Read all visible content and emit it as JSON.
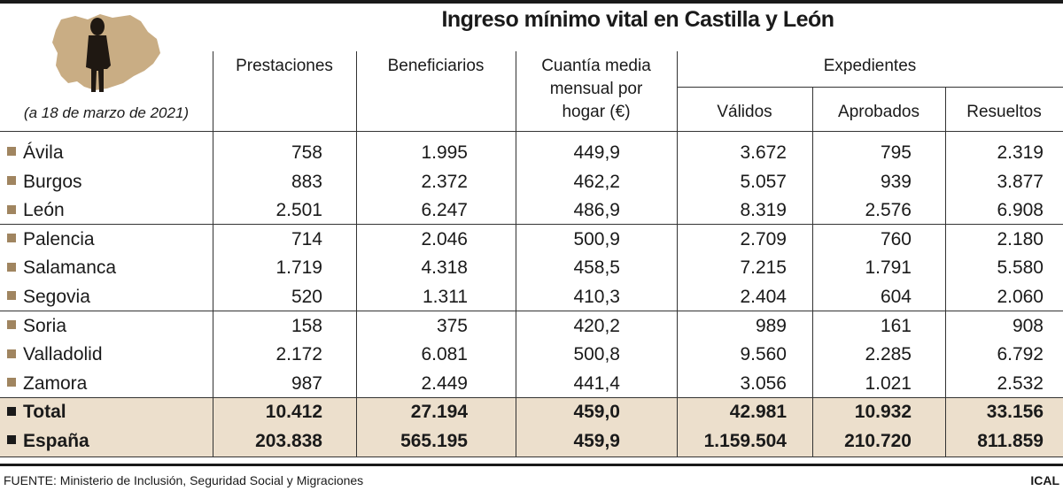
{
  "title": "Ingreso mínimo vital en Castilla y León",
  "date_note": "(a 18 de marzo de 2021)",
  "colors": {
    "beige_total_bg": "#ecdfcc",
    "province_bullet": "#a08560",
    "map_fill": "#c9ad84",
    "silhouette": "#1f1812"
  },
  "headers": {
    "prestaciones": "Prestaciones",
    "beneficiarios": "Beneficiarios",
    "cuantia": [
      "Cuantía media",
      "mensual por",
      "hogar (€)"
    ],
    "expedientes": "Expedientes",
    "validos": "Válidos",
    "aprobados": "Aprobados",
    "resueltos": "Resueltos"
  },
  "chart_data": {
    "type": "table",
    "title": "Ingreso mínimo vital en Castilla y León",
    "columns": [
      "Prestaciones",
      "Beneficiarios",
      "Cuantía media mensual por hogar (€)",
      "Expedientes Válidos",
      "Expedientes Aprobados",
      "Expedientes Resueltos"
    ],
    "rows": [
      {
        "name": "Ávila",
        "values": [
          "758",
          "1.995",
          "449,9",
          "3.672",
          "795",
          "2.319"
        ]
      },
      {
        "name": "Burgos",
        "values": [
          "883",
          "2.372",
          "462,2",
          "5.057",
          "939",
          "3.877"
        ]
      },
      {
        "name": "León",
        "values": [
          "2.501",
          "6.247",
          "486,9",
          "8.319",
          "2.576",
          "6.908"
        ]
      },
      {
        "name": "Palencia",
        "values": [
          "714",
          "2.046",
          "500,9",
          "2.709",
          "760",
          "2.180"
        ]
      },
      {
        "name": "Salamanca",
        "values": [
          "1.719",
          "4.318",
          "458,5",
          "7.215",
          "1.791",
          "5.580"
        ]
      },
      {
        "name": "Segovia",
        "values": [
          "520",
          "1.311",
          "410,3",
          "2.404",
          "604",
          "2.060"
        ]
      },
      {
        "name": "Soria",
        "values": [
          "158",
          "375",
          "420,2",
          "989",
          "161",
          "908"
        ]
      },
      {
        "name": "Valladolid",
        "values": [
          "2.172",
          "6.081",
          "500,8",
          "9.560",
          "2.285",
          "6.792"
        ]
      },
      {
        "name": "Zamora",
        "values": [
          "987",
          "2.449",
          "441,4",
          "3.056",
          "1.021",
          "2.532"
        ]
      },
      {
        "name": "Total",
        "values": [
          "10.412",
          "27.194",
          "459,0",
          "42.981",
          "10.932",
          "33.156"
        ],
        "total": true
      },
      {
        "name": "España",
        "values": [
          "203.838",
          "565.195",
          "459,9",
          "1.159.504",
          "210.720",
          "811.859"
        ],
        "total": true
      }
    ]
  },
  "footer": {
    "source": "FUENTE: Ministerio de Inclusión, Seguridad Social y Migraciones",
    "brand": "ICAL"
  }
}
